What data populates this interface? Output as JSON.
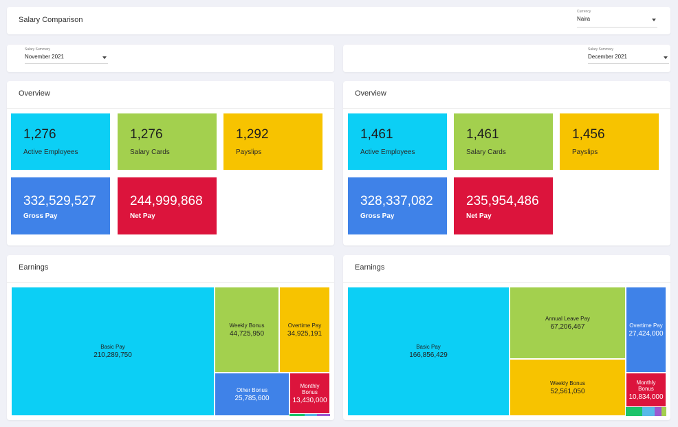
{
  "header": {
    "title": "Salary Comparison",
    "currency": {
      "label": "Currency",
      "value": "Naira"
    }
  },
  "left": {
    "summary": {
      "label": "Salary Summary",
      "value": "November 2021"
    },
    "overview": {
      "title": "Overview",
      "tiles": [
        {
          "value": "1,276",
          "label": "Active Employees",
          "color": "#0ccff5"
        },
        {
          "value": "1,276",
          "label": "Salary Cards",
          "color": "#a3d04e"
        },
        {
          "value": "1,292",
          "label": "Payslips",
          "color": "#f7c300"
        },
        {
          "value": "332,529,527",
          "label": "Gross Pay",
          "color": "#3f82e8"
        },
        {
          "value": "244,999,868",
          "label": "Net Pay",
          "color": "#dc143c"
        }
      ]
    },
    "earnings": {
      "title": "Earnings",
      "cells": [
        {
          "label": "Basic Pay",
          "value": "210,289,750",
          "color": "#0ccff5"
        },
        {
          "label": "Weekly Bonus",
          "value": "44,725,950",
          "color": "#a3d04e"
        },
        {
          "label": "Overtime Pay",
          "value": "34,925,191",
          "color": "#f7c300"
        },
        {
          "label": "Other Bonus",
          "value": "25,785,600",
          "color": "#3f82e8"
        },
        {
          "label": "Monthly Bonus",
          "value": "13,430,000",
          "color": "#dc143c"
        }
      ]
    }
  },
  "right": {
    "summary": {
      "label": "Salary Summary",
      "value": "December 2021"
    },
    "overview": {
      "title": "Overview",
      "tiles": [
        {
          "value": "1,461",
          "label": "Active Employees",
          "color": "#0ccff5"
        },
        {
          "value": "1,461",
          "label": "Salary Cards",
          "color": "#a3d04e"
        },
        {
          "value": "1,456",
          "label": "Payslips",
          "color": "#f7c300"
        },
        {
          "value": "328,337,082",
          "label": "Gross Pay",
          "color": "#3f82e8"
        },
        {
          "value": "235,954,486",
          "label": "Net Pay",
          "color": "#dc143c"
        }
      ]
    },
    "earnings": {
      "title": "Earnings",
      "cells": [
        {
          "label": "Basic Pay",
          "value": "166,856,429",
          "color": "#0ccff5"
        },
        {
          "label": "Annual Leave Pay",
          "value": "67,206,467",
          "color": "#a3d04e"
        },
        {
          "label": "Weekly Bonus",
          "value": "52,561,050",
          "color": "#f7c300"
        },
        {
          "label": "Overtime Pay",
          "value": "27,424,000",
          "color": "#3f82e8"
        },
        {
          "label": "Monthly Bonus",
          "value": "10,834,000",
          "color": "#dc143c"
        }
      ]
    }
  }
}
